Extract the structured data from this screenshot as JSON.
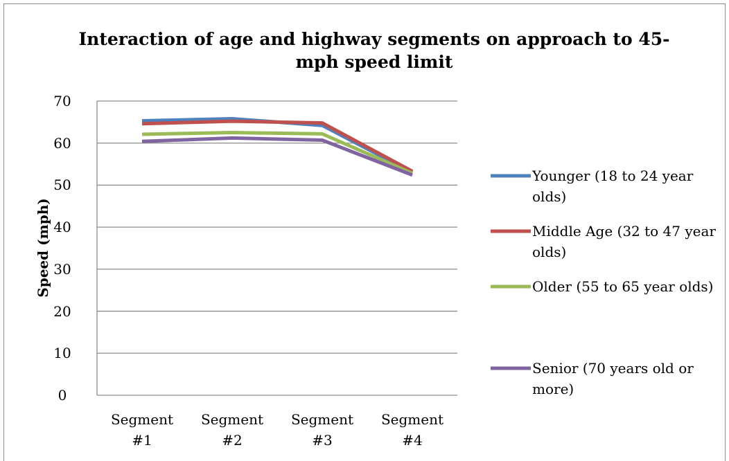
{
  "chart_data": {
    "type": "line",
    "title": "Interaction of age and highway segments on approach to 45-mph speed limit",
    "y_label": "Speed (mph)",
    "categories": [
      "Segment #1",
      "Segment #2",
      "Segment #3",
      "Segment #4"
    ],
    "series": [
      {
        "name": "Younger (18 to 24 year olds)",
        "color": "#4f81bd",
        "values": [
          65.3,
          65.8,
          64.2,
          53.0
        ]
      },
      {
        "name": "Middle Age (32 to 47 year olds)",
        "color": "#c0504d",
        "values": [
          64.6,
          65.2,
          64.8,
          53.3
        ]
      },
      {
        "name": "Older (55 to 65 year olds)",
        "color": "#9bbb59",
        "values": [
          62.1,
          62.5,
          62.2,
          52.8
        ]
      },
      {
        "name": "Senior (70 years old or more)",
        "color": "#8064a2",
        "values": [
          60.4,
          61.2,
          60.7,
          52.4
        ]
      }
    ],
    "ylim": [
      0,
      70
    ],
    "yticks": [
      0,
      10,
      20,
      30,
      40,
      50,
      60,
      70
    ],
    "grid": true,
    "legend": "right"
  }
}
